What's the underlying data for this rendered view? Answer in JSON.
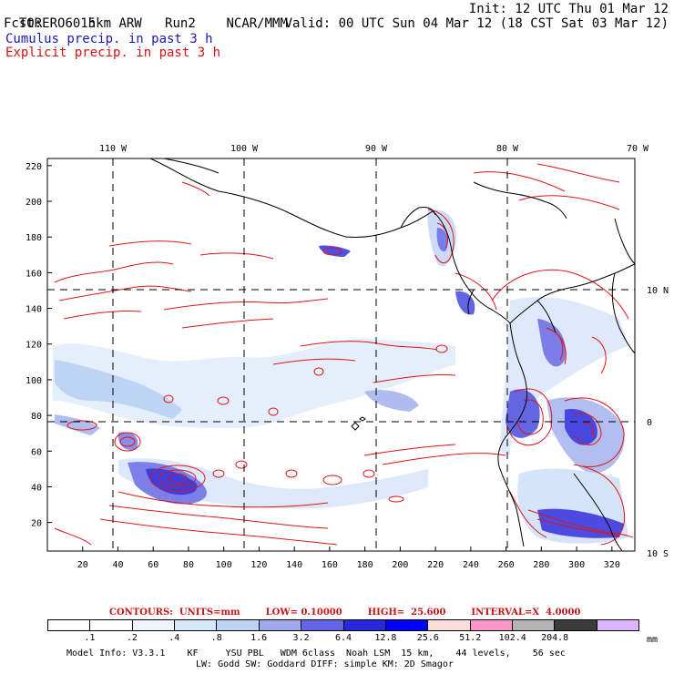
{
  "header": {
    "model": "TORERO",
    "resolution": "15km ARW",
    "run": "Run2",
    "org": "NCAR/MMM",
    "init": "Init: 12 UTC Thu 01 Mar 12",
    "fcst_label": "Fcst:",
    "fcst_value": "60 h",
    "valid": "Valid: 00 UTC Sun 04 Mar 12 (18 CST Sat 03 Mar 12)",
    "field1": "Cumulus precip. in past 3 h",
    "field2": "Explicit precip. in past 3 h"
  },
  "map": {
    "lon_labels": [
      "110 W",
      "100 W",
      "90 W",
      "80 W",
      "70 W"
    ],
    "lat_labels": [
      "10 N",
      "0",
      "10 S"
    ],
    "x_ticks": [
      "20",
      "40",
      "60",
      "80",
      "100",
      "120",
      "140",
      "160",
      "180",
      "200",
      "220",
      "240",
      "260",
      "280",
      "300",
      "320"
    ],
    "y_ticks": [
      "20",
      "40",
      "60",
      "80",
      "100",
      "120",
      "140",
      "160",
      "180",
      "200",
      "220"
    ],
    "x_range": [
      0,
      333
    ],
    "y_range": [
      4,
      224
    ]
  },
  "legend": {
    "contours": "CONTOURS:  UNITS=mm",
    "low": "LOW= 0.10000",
    "high": "HIGH=  25.600",
    "interval": "INTERVAL=X  4.0000",
    "levels": [
      ".1",
      ".2",
      ".4",
      ".8",
      "1.6",
      "3.2",
      "6.4",
      "12.8",
      "25.6",
      "51.2",
      "102.4",
      "204.8"
    ],
    "colors": [
      "#ffffff",
      "#ffffff",
      "#eef5fd",
      "#d6e8fa",
      "#bcd3f5",
      "#a0a8ee",
      "#6464e6",
      "#2828dc",
      "#0000ff",
      "#ffdcdc",
      "#ff96c8",
      "#b4b4b4",
      "#3c3c3c",
      "#dcb4ff"
    ],
    "unit": "mm"
  },
  "footer": {
    "line1": "Model Info: V3.3.1    KF     YSU PBL   WDM 6class  Noah LSM  15 km,    44 levels,    56 sec",
    "line2": "LW: Godd SW: Goddard DIFF: simple KM: 2D Smagor"
  }
}
